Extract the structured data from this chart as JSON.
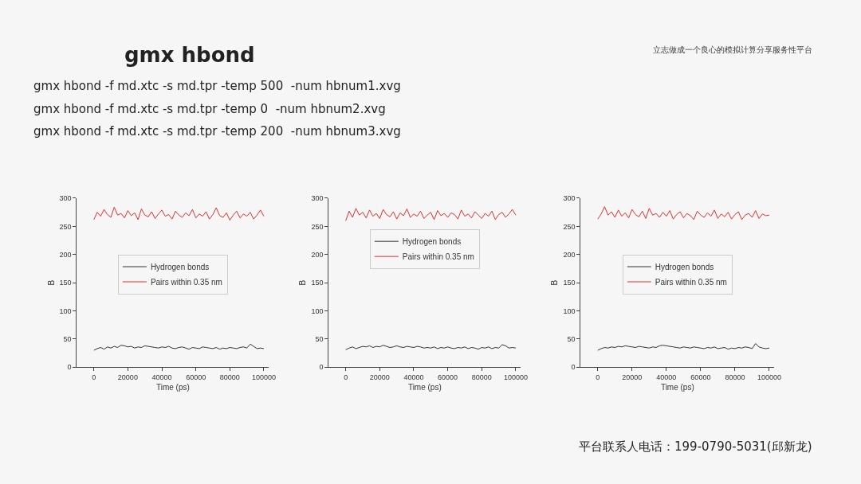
{
  "chart_data": [
    {
      "type": "line",
      "title": "gmx hbond",
      "xlabel": "Time (ps)",
      "ylabel": "B",
      "annotations": [
        "gmx hbond -f md.xtc -s md.tpr -temp 500  -num hbnum1.xvg",
        "gmx hbond -f md.xtc -s md.tpr -temp 0  -num hbnum2.xvg",
        "gmx hbond -f md.xtc -s md.tpr -temp 200  -num hbnum3.xvg"
      ],
      "x": [
        0,
        2000,
        4000,
        6000,
        8000,
        10000,
        12000,
        14000,
        16000,
        18000,
        20000,
        22000,
        24000,
        26000,
        28000,
        30000,
        32000,
        34000,
        36000,
        38000,
        40000,
        42000,
        44000,
        46000,
        48000,
        50000,
        52000,
        54000,
        56000,
        58000,
        60000,
        62000,
        64000,
        66000,
        68000,
        70000,
        72000,
        74000,
        76000,
        78000,
        80000,
        82000,
        84000,
        86000,
        88000,
        90000,
        92000,
        94000,
        96000,
        98000,
        100000
      ],
      "series": [
        {
          "name": "Hydrogen bonds",
          "color": "#333333",
          "values": [
            30,
            33,
            35,
            32,
            36,
            34,
            37,
            35,
            39,
            38,
            36,
            37,
            34,
            36,
            35,
            38,
            37,
            36,
            35,
            34,
            36,
            35,
            37,
            34,
            33,
            35,
            36,
            34,
            32,
            35,
            34,
            33,
            36,
            35,
            34,
            33,
            35,
            32,
            34,
            33,
            35,
            34,
            33,
            35,
            36,
            34,
            41,
            37,
            33,
            34,
            33
          ]
        },
        {
          "name": "Pairs within 0.35 nm",
          "color": "#e0302f",
          "values": [
            262,
            275,
            268,
            280,
            271,
            266,
            284,
            270,
            273,
            265,
            278,
            269,
            274,
            262,
            281,
            270,
            267,
            276,
            264,
            272,
            279,
            268,
            271,
            263,
            277,
            270,
            266,
            274,
            269,
            280,
            265,
            272,
            268,
            276,
            263,
            271,
            283,
            269,
            266,
            274,
            261,
            270,
            277,
            265,
            272,
            268,
            275,
            263,
            270,
            279,
            268
          ]
        }
      ],
      "xlim": [
        -10000,
        103000
      ],
      "xticks": [
        0,
        20000,
        40000,
        60000,
        80000,
        100000
      ],
      "ylim": [
        0,
        300
      ],
      "yticks": [
        0,
        50,
        100,
        150,
        200,
        250,
        300
      ],
      "legend": "center",
      "grid": false
    },
    {
      "type": "line",
      "xlabel": "Time (ps)",
      "ylabel": "B",
      "x": [
        0,
        2000,
        4000,
        6000,
        8000,
        10000,
        12000,
        14000,
        16000,
        18000,
        20000,
        22000,
        24000,
        26000,
        28000,
        30000,
        32000,
        34000,
        36000,
        38000,
        40000,
        42000,
        44000,
        46000,
        48000,
        50000,
        52000,
        54000,
        56000,
        58000,
        60000,
        62000,
        64000,
        66000,
        68000,
        70000,
        72000,
        74000,
        76000,
        78000,
        80000,
        82000,
        84000,
        86000,
        88000,
        90000,
        92000,
        94000,
        96000,
        98000,
        100000
      ],
      "series": [
        {
          "name": "Hydrogen bonds",
          "color": "#333333",
          "values": [
            31,
            34,
            36,
            33,
            35,
            37,
            36,
            38,
            35,
            37,
            36,
            39,
            37,
            35,
            36,
            38,
            36,
            35,
            37,
            36,
            35,
            37,
            36,
            34,
            35,
            34,
            36,
            33,
            35,
            34,
            36,
            34,
            33,
            35,
            34,
            36,
            33,
            35,
            34,
            32,
            35,
            34,
            36,
            33,
            35,
            34,
            40,
            38,
            34,
            35,
            34
          ]
        },
        {
          "name": "Pairs within 0.35 nm",
          "color": "#e0302f",
          "values": [
            260,
            277,
            266,
            282,
            270,
            275,
            265,
            279,
            268,
            273,
            264,
            280,
            271,
            267,
            276,
            263,
            274,
            269,
            281,
            266,
            272,
            268,
            277,
            264,
            270,
            275,
            262,
            278,
            269,
            273,
            266,
            274,
            271,
            263,
            279,
            268,
            272,
            265,
            276,
            270,
            264,
            273,
            268,
            277,
            262,
            271,
            275,
            266,
            272,
            280,
            270
          ]
        }
      ],
      "xlim": [
        -10000,
        103000
      ],
      "xticks": [
        0,
        20000,
        40000,
        60000,
        80000,
        100000
      ],
      "ylim": [
        0,
        300
      ],
      "yticks": [
        0,
        50,
        100,
        150,
        200,
        250,
        300
      ],
      "legend": "top",
      "grid": false
    },
    {
      "type": "line",
      "subtitle": "立志做成一个良心的模拟计算分享服务性平台",
      "xlabel": "Time (ps)",
      "ylabel": "B",
      "annotations": [
        "平台联系人电话：199-0790-5031(邱新龙)"
      ],
      "x": [
        0,
        2000,
        4000,
        6000,
        8000,
        10000,
        12000,
        14000,
        16000,
        18000,
        20000,
        22000,
        24000,
        26000,
        28000,
        30000,
        32000,
        34000,
        36000,
        38000,
        40000,
        42000,
        44000,
        46000,
        48000,
        50000,
        52000,
        54000,
        56000,
        58000,
        60000,
        62000,
        64000,
        66000,
        68000,
        70000,
        72000,
        74000,
        76000,
        78000,
        80000,
        82000,
        84000,
        86000,
        88000,
        90000,
        92000,
        94000,
        96000,
        98000,
        100000
      ],
      "series": [
        {
          "name": "Hydrogen bonds",
          "color": "#333333",
          "values": [
            30,
            33,
            35,
            34,
            36,
            35,
            37,
            36,
            38,
            37,
            36,
            35,
            37,
            36,
            35,
            34,
            36,
            35,
            38,
            39,
            38,
            37,
            36,
            35,
            34,
            36,
            35,
            34,
            36,
            35,
            34,
            33,
            35,
            34,
            36,
            33,
            34,
            35,
            32,
            34,
            33,
            35,
            34,
            36,
            35,
            33,
            42,
            36,
            34,
            33,
            34
          ]
        },
        {
          "name": "Pairs within 0.35 nm",
          "color": "#e0302f",
          "values": [
            263,
            272,
            285,
            270,
            276,
            266,
            279,
            268,
            274,
            265,
            280,
            271,
            267,
            277,
            264,
            282,
            270,
            273,
            266,
            275,
            268,
            278,
            263,
            271,
            276,
            265,
            273,
            269,
            262,
            277,
            270,
            266,
            274,
            268,
            279,
            264,
            272,
            267,
            275,
            263,
            271,
            276,
            262,
            270,
            273,
            266,
            278,
            264,
            272,
            269,
            270
          ]
        }
      ],
      "xlim": [
        -10000,
        103000
      ],
      "xticks": [
        0,
        20000,
        40000,
        60000,
        80000,
        100000
      ],
      "ylim": [
        0,
        300
      ],
      "yticks": [
        0,
        50,
        100,
        150,
        200,
        250,
        300
      ],
      "legend": "center",
      "grid": false
    }
  ]
}
